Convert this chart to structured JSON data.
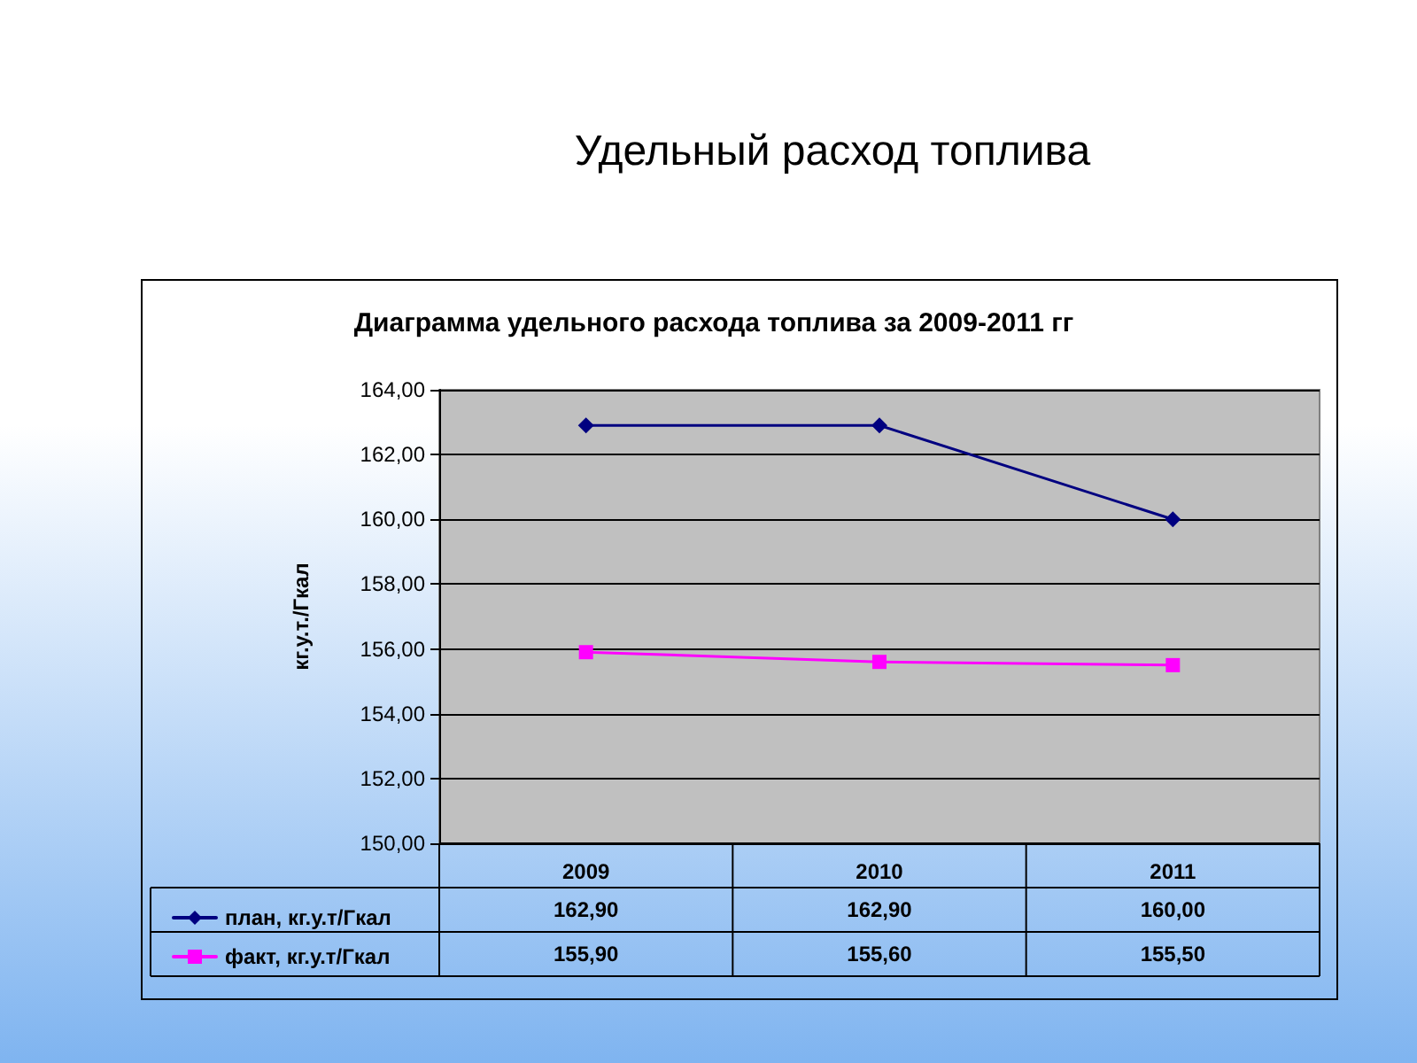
{
  "chart_data": {
    "type": "line",
    "title": "Удельный расход топлива",
    "subtitle": "Диаграмма удельного расхода топлива за 2009-2011 гг",
    "ylabel": "кг.у.т./Гкал",
    "categories": [
      "2009",
      "2010",
      "2011"
    ],
    "series": [
      {
        "name": "план, кг.у.т/Гкал",
        "color": "#000080",
        "marker": "diamond",
        "values": [
          162.9,
          162.9,
          160.0
        ],
        "value_labels": [
          "162,90",
          "162,90",
          "160,00"
        ]
      },
      {
        "name": "факт, кг.у.т/Гкал",
        "color": "#ff00ff",
        "marker": "square",
        "values": [
          155.9,
          155.6,
          155.5
        ],
        "value_labels": [
          "155,90",
          "155,60",
          "155,50"
        ]
      }
    ],
    "ylim": [
      150,
      164
    ],
    "yticks": [
      {
        "value": 150,
        "label": "150,00"
      },
      {
        "value": 152,
        "label": "152,00"
      },
      {
        "value": 154,
        "label": "154,00"
      },
      {
        "value": 156,
        "label": "156,00"
      },
      {
        "value": 158,
        "label": "158,00"
      },
      {
        "value": 160,
        "label": "160,00"
      },
      {
        "value": 162,
        "label": "162,00"
      },
      {
        "value": 164,
        "label": "164,00"
      }
    ],
    "grid": "y",
    "legend": "bottom left",
    "line_style": "solid"
  }
}
